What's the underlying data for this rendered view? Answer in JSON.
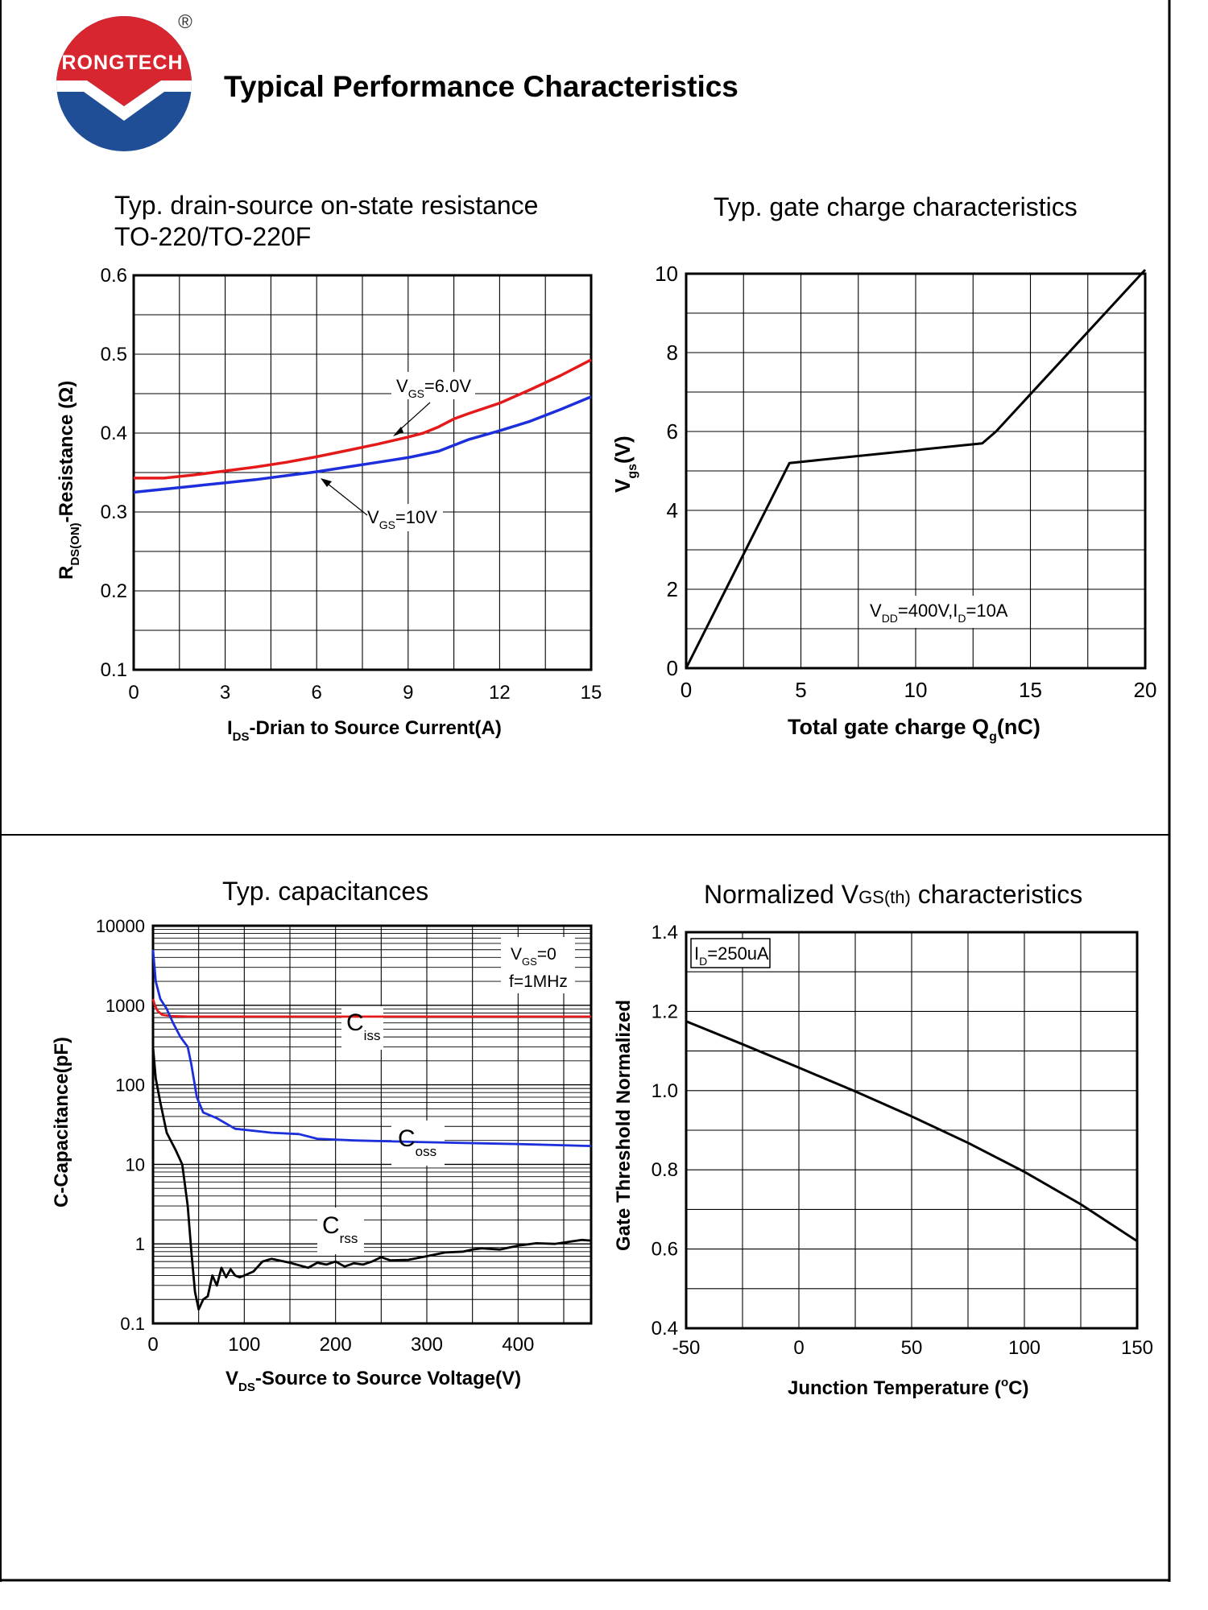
{
  "header": {
    "brand": "RONGTECH",
    "registered_mark": "®",
    "title": "Typical Performance Characteristics",
    "logo_colors": {
      "red": "#d7262f",
      "blue": "#1f4e96"
    }
  },
  "colors": {
    "red": "#e41a1a",
    "blue": "#1d2fdb",
    "black": "#000000",
    "grid": "#000000"
  },
  "chart_data": [
    {
      "id": "rds",
      "type": "line",
      "title": "Typ. drain-source on-state resistance",
      "subtitle": "TO-220/TO-220F",
      "xlabel_main": "I",
      "xlabel_sub": "DS",
      "xlabel_rest": "-Drian to Source Current(A)",
      "ylabel_main": "R",
      "ylabel_sub": "DS(ON)",
      "ylabel_rest": "-Resistance (Ω)",
      "xlim": [
        0,
        15
      ],
      "ylim": [
        0.1,
        0.6
      ],
      "xticks": [
        0,
        3,
        6,
        9,
        12,
        15
      ],
      "yticks": [
        0.1,
        0.2,
        0.3,
        0.4,
        0.5,
        0.6
      ],
      "xtick_labels": [
        "0",
        "3",
        "6",
        "9",
        "12",
        "15"
      ],
      "ytick_labels": [
        "0.1",
        "0.2",
        "0.3",
        "0.4",
        "0.5",
        "0.6"
      ],
      "xgrid": [
        0,
        1.5,
        3,
        4.5,
        6,
        7.5,
        9,
        10.5,
        12,
        13.5,
        15
      ],
      "ygrid": [
        0.1,
        0.15,
        0.2,
        0.25,
        0.3,
        0.35,
        0.4,
        0.45,
        0.5,
        0.55,
        0.6
      ],
      "series": [
        {
          "name": "VGS=6.0V",
          "label_main": "V",
          "label_sub": "GS",
          "label_rest": "=6.0V",
          "color": "red",
          "x": [
            0,
            1,
            2,
            3,
            4,
            5,
            6,
            7,
            8,
            9,
            9.5,
            10,
            10.5,
            11,
            12,
            13,
            14,
            15
          ],
          "y": [
            0.343,
            0.343,
            0.347,
            0.352,
            0.357,
            0.363,
            0.37,
            0.378,
            0.386,
            0.395,
            0.4,
            0.408,
            0.418,
            0.425,
            0.438,
            0.455,
            0.473,
            0.493
          ]
        },
        {
          "name": "VGS=10V",
          "label_main": "V",
          "label_sub": "GS",
          "label_rest": "=10V",
          "color": "blue",
          "x": [
            0,
            1,
            2,
            3,
            4,
            5,
            6,
            7,
            8,
            9,
            10,
            11,
            12,
            13,
            14,
            15
          ],
          "y": [
            0.325,
            0.329,
            0.333,
            0.337,
            0.341,
            0.346,
            0.351,
            0.357,
            0.363,
            0.369,
            0.377,
            0.392,
            0.403,
            0.415,
            0.43,
            0.446
          ]
        }
      ]
    },
    {
      "id": "gate",
      "type": "line",
      "title": "Typ. gate charge characteristics",
      "xlabel_main": "Total gate charge Q",
      "xlabel_sub": "g",
      "xlabel_rest": "(nC)",
      "ylabel_main": "V",
      "ylabel_sub": "gs",
      "ylabel_rest": "(V)",
      "xlim": [
        0,
        20
      ],
      "ylim": [
        0,
        10
      ],
      "xticks": [
        0,
        5,
        10,
        15,
        20
      ],
      "yticks": [
        0,
        2,
        4,
        6,
        8,
        10
      ],
      "xtick_labels": [
        "0",
        "5",
        "10",
        "15",
        "20"
      ],
      "ytick_labels": [
        "0",
        "2",
        "4",
        "6",
        "8",
        "10"
      ],
      "xgrid": [
        0,
        2.5,
        5,
        7.5,
        10,
        12.5,
        15,
        17.5,
        20
      ],
      "ygrid": [
        0,
        1,
        2,
        3,
        4,
        5,
        6,
        7,
        8,
        9,
        10
      ],
      "annotation": {
        "p1": "V",
        "s1": "DD",
        "p2": "=400V,I",
        "s2": "D",
        "p3": "=10A"
      },
      "series": [
        {
          "name": "Vgs",
          "color": "black",
          "x": [
            0,
            4.5,
            12.9,
            13.5,
            20
          ],
          "y": [
            0,
            5.2,
            5.7,
            6.0,
            10.1
          ]
        }
      ]
    },
    {
      "id": "cap",
      "type": "line",
      "yscale": "log",
      "title": "Typ. capacitances",
      "xlabel_main": "V",
      "xlabel_sub": "DS",
      "xlabel_rest": "-Source to Source Voltage(V)",
      "ylabel": "C-Capacitance(pF)",
      "xlim": [
        0,
        480
      ],
      "ylim": [
        0.1,
        10000
      ],
      "xticks": [
        0,
        100,
        200,
        300,
        400
      ],
      "yticks": [
        0.1,
        1,
        10,
        100,
        1000,
        10000
      ],
      "xtick_labels": [
        "0",
        "100",
        "200",
        "300",
        "400"
      ],
      "ytick_labels": [
        "0.1",
        "1",
        "10",
        "100",
        "1000",
        "10000"
      ],
      "xgrid": [
        0,
        50,
        100,
        150,
        200,
        250,
        300,
        350,
        400,
        450,
        480
      ],
      "legend": {
        "line1_main": "V",
        "line1_sub": "GS",
        "line1_rest": "=0",
        "line2": "f=1MHz"
      },
      "series": [
        {
          "name": "Ciss",
          "label_main": "C",
          "label_sub": "iss",
          "color": "red",
          "x": [
            0,
            2,
            5,
            10,
            20,
            40,
            80,
            150,
            300,
            480
          ],
          "y": [
            1200,
            1000,
            850,
            760,
            730,
            720,
            720,
            720,
            720,
            720
          ]
        },
        {
          "name": "Coss",
          "label_main": "C",
          "label_sub": "oss",
          "color": "blue",
          "x": [
            0,
            3,
            8,
            15,
            22,
            30,
            38,
            42,
            48,
            55,
            70,
            90,
            130,
            160,
            180,
            220,
            300,
            400,
            480
          ],
          "y": [
            5000,
            2000,
            1200,
            900,
            600,
            400,
            300,
            180,
            70,
            45,
            38,
            28,
            25,
            24,
            21,
            20,
            19,
            18,
            17
          ]
        },
        {
          "name": "Crss",
          "label_main": "C",
          "label_sub": "rss",
          "color": "black",
          "x": [
            0,
            3,
            8,
            15,
            25,
            32,
            38,
            42,
            46,
            50,
            55,
            60,
            65,
            70,
            75,
            80,
            85,
            90,
            95,
            100,
            110,
            120,
            130,
            150,
            170,
            180,
            190,
            200,
            210,
            220,
            230,
            240,
            250,
            260,
            280,
            300,
            320,
            340,
            350,
            360,
            380,
            400,
            420,
            440,
            460,
            470,
            480
          ],
          "y": [
            300,
            120,
            60,
            25,
            15,
            10,
            3,
            0.8,
            0.25,
            0.15,
            0.2,
            0.22,
            0.4,
            0.3,
            0.5,
            0.38,
            0.48,
            0.4,
            0.38,
            0.4,
            0.45,
            0.6,
            0.65,
            0.58,
            0.5,
            0.58,
            0.55,
            0.6,
            0.52,
            0.57,
            0.55,
            0.6,
            0.68,
            0.62,
            0.63,
            0.7,
            0.78,
            0.8,
            0.85,
            0.88,
            0.85,
            0.95,
            1.02,
            1.0,
            1.08,
            1.12,
            1.1
          ]
        }
      ]
    },
    {
      "id": "vth",
      "type": "line",
      "title_main": "Normalized V",
      "title_sub": "GS(th)",
      "title_rest": " characteristics",
      "xlabel_main": "Junction Temperature (",
      "xlabel_sup": "o",
      "xlabel_rest": "C)",
      "ylabel": "Gate Threshold Normalized",
      "xlim": [
        -50,
        150
      ],
      "ylim": [
        0.4,
        1.4
      ],
      "xticks": [
        -50,
        0,
        50,
        100,
        150
      ],
      "yticks": [
        0.4,
        0.6,
        0.8,
        1.0,
        1.2,
        1.4
      ],
      "xtick_labels": [
        "-50",
        "0",
        "50",
        "100",
        "150"
      ],
      "ytick_labels": [
        "0.4",
        "0.6",
        "0.8",
        "1.0",
        "1.2",
        "1.4"
      ],
      "xgrid": [
        -50,
        -25,
        0,
        25,
        50,
        75,
        100,
        125,
        150
      ],
      "ygrid": [
        0.4,
        0.5,
        0.6,
        0.7,
        0.8,
        0.9,
        1.0,
        1.1,
        1.2,
        1.3,
        1.4
      ],
      "annotation": {
        "p1": "I",
        "s1": "D",
        "p2": "=250uA"
      },
      "series": [
        {
          "name": "Normalized VGS(th)",
          "color": "black",
          "x": [
            -50,
            -25,
            0,
            25,
            50,
            75,
            100,
            125,
            150
          ],
          "y": [
            1.175,
            1.117,
            1.058,
            0.998,
            0.935,
            0.868,
            0.795,
            0.713,
            0.62
          ]
        }
      ]
    }
  ]
}
